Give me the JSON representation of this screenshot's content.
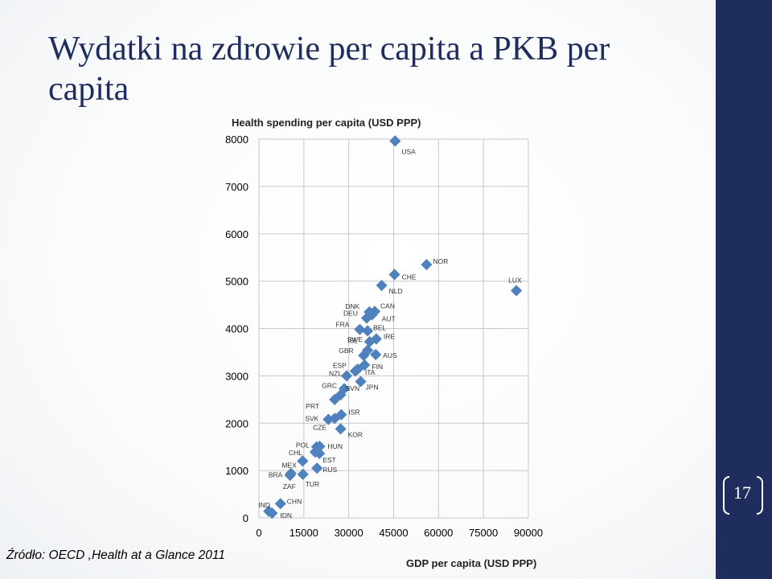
{
  "slide": {
    "title": "Wydatki na zdrowie per capita a PKB per capita",
    "source": "Źródło: OECD ,Health at a Glance 2011",
    "slide_number": "17"
  },
  "colors": {
    "marker": "#4f81bd",
    "title": "#1f2d5e",
    "sidebar": "#1f2d5e",
    "grid": "#c8c8c8"
  },
  "chart_data": {
    "type": "scatter",
    "ylabel": "Health spending per capita (USD PPP)",
    "xlabel": "GDP per capita (USD PPP)",
    "xlim": [
      0,
      90000
    ],
    "ylim": [
      0,
      8000
    ],
    "x_ticks": [
      0,
      15000,
      30000,
      45000,
      60000,
      75000,
      90000
    ],
    "y_ticks": [
      0,
      1000,
      2000,
      3000,
      4000,
      5000,
      6000,
      7000,
      8000
    ],
    "grid": true,
    "points": [
      {
        "label": "USA",
        "x": 45500,
        "y": 7960
      },
      {
        "label": "NOR",
        "x": 56000,
        "y": 5350
      },
      {
        "label": "CHE",
        "x": 45300,
        "y": 5140
      },
      {
        "label": "NLD",
        "x": 41000,
        "y": 4910
      },
      {
        "label": "LUX",
        "x": 86000,
        "y": 4800
      },
      {
        "label": "CAN",
        "x": 38700,
        "y": 4360
      },
      {
        "label": "DNK",
        "x": 36900,
        "y": 4350
      },
      {
        "label": "AUT",
        "x": 37800,
        "y": 4290
      },
      {
        "label": "DEU",
        "x": 36000,
        "y": 4220
      },
      {
        "label": "FRA",
        "x": 33700,
        "y": 3980
      },
      {
        "label": "BEL",
        "x": 36300,
        "y": 3950
      },
      {
        "label": "IRE",
        "x": 39200,
        "y": 3780
      },
      {
        "label": "SWE",
        "x": 37000,
        "y": 3720
      },
      {
        "label": "ISL",
        "x": 36300,
        "y": 3540
      },
      {
        "label": "AUS",
        "x": 39000,
        "y": 3450
      },
      {
        "label": "GBR",
        "x": 35000,
        "y": 3430
      },
      {
        "label": "FIN",
        "x": 35300,
        "y": 3230
      },
      {
        "label": "ESP",
        "x": 32200,
        "y": 3100
      },
      {
        "label": "ITA",
        "x": 33000,
        "y": 3140
      },
      {
        "label": "NZL",
        "x": 29300,
        "y": 3000
      },
      {
        "label": "JPN",
        "x": 34000,
        "y": 2880
      },
      {
        "label": "GRC",
        "x": 28500,
        "y": 2730
      },
      {
        "label": "SVN",
        "x": 27300,
        "y": 2600
      },
      {
        "label": "PRT",
        "x": 25300,
        "y": 2500
      },
      {
        "label": "ISR",
        "x": 27500,
        "y": 2180
      },
      {
        "label": "SVK",
        "x": 23200,
        "y": 2080
      },
      {
        "label": "CZE",
        "x": 25300,
        "y": 2100
      },
      {
        "label": "KOR",
        "x": 27300,
        "y": 1880
      },
      {
        "label": "POL",
        "x": 19300,
        "y": 1500
      },
      {
        "label": "HUN",
        "x": 20300,
        "y": 1510
      },
      {
        "label": "CHL",
        "x": 18800,
        "y": 1390
      },
      {
        "label": "EST",
        "x": 20200,
        "y": 1360
      },
      {
        "label": "MEX",
        "x": 14600,
        "y": 1200
      },
      {
        "label": "RUS",
        "x": 19400,
        "y": 1050
      },
      {
        "label": "BRA",
        "x": 10700,
        "y": 940
      },
      {
        "label": "ZAF",
        "x": 10400,
        "y": 900
      },
      {
        "label": "TUR",
        "x": 14700,
        "y": 920
      },
      {
        "label": "CHN",
        "x": 7200,
        "y": 300
      },
      {
        "label": "IND",
        "x": 3300,
        "y": 140
      },
      {
        "label": "IDN",
        "x": 4400,
        "y": 100
      }
    ]
  }
}
